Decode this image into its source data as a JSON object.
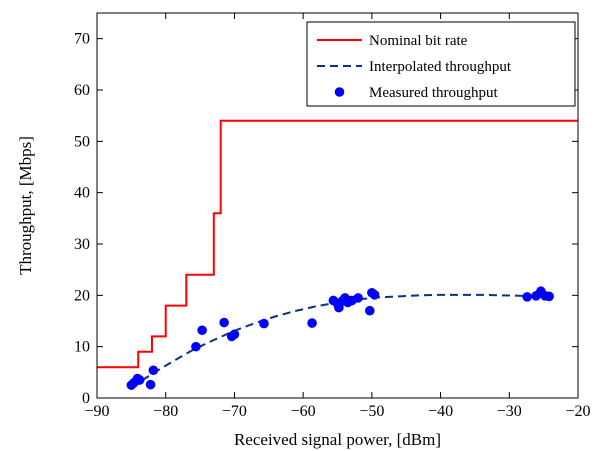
{
  "chart_data": {
    "type": "line",
    "title": "",
    "xlabel": "Received signal power, [dBm]",
    "ylabel": "Throughput, [Mbps]",
    "xlim": [
      -90,
      -20
    ],
    "ylim": [
      0,
      75
    ],
    "xticks": [
      -90,
      -80,
      -70,
      -60,
      -50,
      -40,
      -30,
      -20
    ],
    "yticks": [
      0,
      10,
      20,
      30,
      40,
      50,
      60,
      70
    ],
    "xtick_labels": [
      "−90",
      "−80",
      "−70",
      "−60",
      "−50",
      "−40",
      "−30",
      "−20"
    ],
    "ytick_labels": [
      "0",
      "10",
      "20",
      "30",
      "40",
      "50",
      "60",
      "70"
    ],
    "grid": false,
    "legend_position": "top-right",
    "series": [
      {
        "name": "Nominal bit rate",
        "kind": "step-line",
        "style": "solid",
        "color": "#ff0000",
        "x": [
          -90,
          -84,
          -84,
          -82,
          -82,
          -80,
          -80,
          -77,
          -77,
          -73,
          -73,
          -72,
          -72,
          -20
        ],
        "y": [
          6,
          6,
          9,
          9,
          12,
          12,
          18,
          18,
          24,
          24,
          36,
          36,
          54,
          54
        ]
      },
      {
        "name": "Interpolated throughput",
        "kind": "line",
        "style": "dashed",
        "color": "#0a2f8f",
        "x": [
          -85,
          -82,
          -79,
          -76,
          -73,
          -70,
          -67,
          -64,
          -61,
          -58,
          -55,
          -52,
          -49,
          -46,
          -43,
          -40,
          -37,
          -34,
          -31,
          -28,
          -25
        ],
        "y": [
          2.0,
          4.7,
          7.1,
          9.4,
          11.3,
          13.1,
          14.6,
          15.9,
          17.0,
          17.9,
          18.6,
          19.2,
          19.6,
          19.8,
          20.0,
          20.1,
          20.1,
          20.1,
          20.0,
          19.9,
          19.8
        ]
      },
      {
        "name": "Measured throughput",
        "kind": "scatter",
        "color": "#0000ff",
        "x": [
          -85.0,
          -84.6,
          -84.1,
          -83.8,
          -82.2,
          -81.8,
          -75.6,
          -74.7,
          -71.5,
          -70.4,
          -70.0,
          -65.7,
          -58.7,
          -55.6,
          -55.0,
          -54.8,
          -54.3,
          -53.9,
          -53.5,
          -52.9,
          -52.0,
          -50.3,
          -50.0,
          -49.6,
          -27.4,
          -26.1,
          -25.4,
          -24.8,
          -24.2
        ],
        "y": [
          2.5,
          3.0,
          3.8,
          3.5,
          2.6,
          5.4,
          10.0,
          13.2,
          14.7,
          12.0,
          12.4,
          14.5,
          14.6,
          19.0,
          18.4,
          17.6,
          18.9,
          19.5,
          18.6,
          19.0,
          19.5,
          17.0,
          20.5,
          20.1,
          19.7,
          19.9,
          20.8,
          19.9,
          19.8
        ]
      }
    ]
  }
}
